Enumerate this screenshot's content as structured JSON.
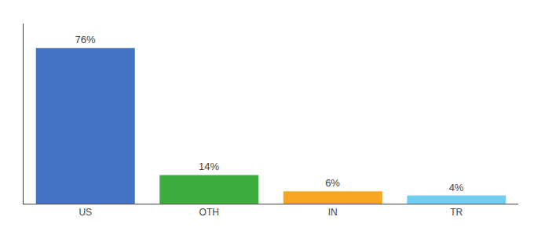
{
  "chart_data": {
    "type": "bar",
    "categories": [
      "US",
      "OTH",
      "IN",
      "TR"
    ],
    "values": [
      76,
      14,
      6,
      4
    ],
    "value_labels": [
      "76%",
      "14%",
      "6%",
      "4%"
    ],
    "data_labels": true,
    "colors": [
      "#4472c4",
      "#3dae3d",
      "#f5a623",
      "#72cef5"
    ],
    "ylim": [
      0,
      88
    ],
    "grid": false,
    "tick_labels": "x"
  }
}
